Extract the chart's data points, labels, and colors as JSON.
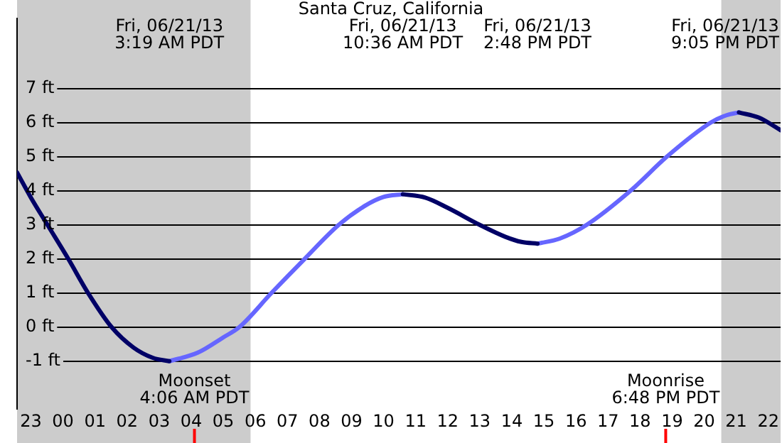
{
  "chart_data": {
    "type": "line",
    "title": "Santa Cruz, California",
    "series": [
      {
        "color": "#000066",
        "x": [
          "--06-20T22:34",
          "--06-20T23:00",
          "--06-20T23:31",
          "--06-21T00:10",
          "--06-21T00:47",
          "--06-21T01:31",
          "--06-21T02:12",
          "--06-21T02:48",
          "--06-21T03:19",
          "--06-21T07:00",
          "--06-21T10:36",
          "--06-21T11:18",
          "--06-21T12:00",
          "--06-21T13:00",
          "--06-21T13:48",
          "--06-21T14:18",
          "--06-21T14:48",
          "--06-21T18:00",
          "--06-21T21:05",
          "--06-21T21:42",
          "--06-21T22:23"
        ],
        "values": [
          4.54,
          3.8,
          3.0,
          2.0,
          1.0,
          0.0,
          -0.6,
          -0.9,
          -1.0,
          null,
          3.9,
          3.8,
          3.5,
          3.0,
          2.65,
          2.5,
          2.45,
          null,
          6.3,
          6.15,
          5.78
        ]
      },
      {
        "color": "#6666ff",
        "x": [
          "--06-21T03:19",
          "--06-21T04:12",
          "--06-21T05:00",
          "--06-21T05:30",
          "--06-21T06:30",
          "--06-21T07:32",
          "--06-21T08:36",
          "--06-21T09:24",
          "--06-21T10:00",
          "--06-21T10:36",
          "--06-21T12:42",
          "--06-21T14:48",
          "--06-21T15:30",
          "--06-21T16:20",
          "--06-21T17:42",
          "--06-21T18:50",
          "--06-21T20:12",
          "--06-21T20:42",
          "--06-21T21:05"
        ],
        "values": [
          -1.0,
          -0.75,
          -0.3,
          0.0,
          1.0,
          2.0,
          3.0,
          3.55,
          3.82,
          3.9,
          null,
          2.45,
          2.6,
          3.0,
          4.0,
          5.0,
          6.0,
          6.22,
          6.3
        ]
      }
    ],
    "xlim": [
      "--06-20T22:34",
      "--06-21T22:23"
    ],
    "xticks": [
      {
        "value": "--06-20T23:00",
        "label": "23"
      },
      {
        "value": "--06-21T00:00",
        "label": "00"
      },
      {
        "value": "--06-21T01:00",
        "label": "01"
      },
      {
        "value": "--06-21T02:00",
        "label": "02"
      },
      {
        "value": "--06-21T03:00",
        "label": "03"
      },
      {
        "value": "--06-21T04:00",
        "label": "04"
      },
      {
        "value": "--06-21T05:00",
        "label": "05"
      },
      {
        "value": "--06-21T06:00",
        "label": "06"
      },
      {
        "value": "--06-21T07:00",
        "label": "07"
      },
      {
        "value": "--06-21T08:00",
        "label": "08"
      },
      {
        "value": "--06-21T09:00",
        "label": "09"
      },
      {
        "value": "--06-21T10:00",
        "label": "10"
      },
      {
        "value": "--06-21T11:00",
        "label": "11"
      },
      {
        "value": "--06-21T12:00",
        "label": "12"
      },
      {
        "value": "--06-21T13:00",
        "label": "13"
      },
      {
        "value": "--06-21T14:00",
        "label": "14"
      },
      {
        "value": "--06-21T15:00",
        "label": "15"
      },
      {
        "value": "--06-21T16:00",
        "label": "16"
      },
      {
        "value": "--06-21T17:00",
        "label": "17"
      },
      {
        "value": "--06-21T18:00",
        "label": "18"
      },
      {
        "value": "--06-21T19:00",
        "label": "19"
      },
      {
        "value": "--06-21T20:00",
        "label": "20"
      },
      {
        "value": "--06-21T21:00",
        "label": "21"
      },
      {
        "value": "--06-21T22:00",
        "label": "22"
      }
    ],
    "ylim": [
      -2.4,
      9.05
    ],
    "yticks": [
      {
        "value": -1,
        "label": "-1 ft"
      },
      {
        "value": 0,
        "label": "0 ft"
      },
      {
        "value": 1,
        "label": "1 ft"
      },
      {
        "value": 2,
        "label": "2 ft"
      },
      {
        "value": 3,
        "label": "3 ft"
      },
      {
        "value": 4,
        "label": "4 ft"
      },
      {
        "value": 5,
        "label": "5 ft"
      },
      {
        "value": 6,
        "label": "6 ft"
      },
      {
        "value": 7,
        "label": "7 ft"
      }
    ],
    "grid": "y",
    "legend": false,
    "marker": "none",
    "line_style": "solid",
    "bands": [
      {
        "axis": "x",
        "from": "--06-20T22:34",
        "to": "--06-21T05:51",
        "color": "#cccccc"
      },
      {
        "axis": "x",
        "from": "--06-21T20:32",
        "to": "--06-21T22:23",
        "color": "#cccccc"
      }
    ],
    "ref_lines": [
      {
        "axis": "x",
        "value": "--06-21T04:06",
        "label": "Moonset\n4:06 AM PDT",
        "color": "#ff0000"
      },
      {
        "axis": "x",
        "value": "--06-21T18:48",
        "label": "Moonrise\n6:48 PM PDT",
        "color": "#ff0000"
      }
    ],
    "annotations": [
      "Fri, 06/21/13\n3:19 AM PDT",
      "Fri, 06/21/13\n10:36 AM PDT",
      "Fri, 06/21/13\n2:48 PM PDT",
      "Fri, 06/21/13\n9:05 PM PDT"
    ]
  }
}
